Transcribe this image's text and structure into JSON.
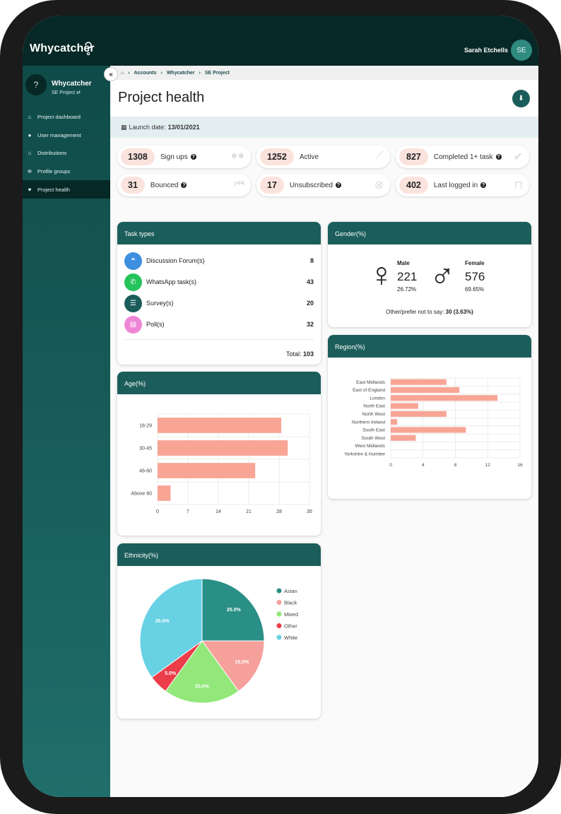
{
  "app": {
    "brand": "Whycatcher",
    "user_name": "Sarah Etchells",
    "user_initials": "SE"
  },
  "sidebar": {
    "project_name": "Whycatcher",
    "project_sub": "SE Project ⇄",
    "items": [
      {
        "label": "Project dashboard",
        "icon": "home-icon"
      },
      {
        "label": "User management",
        "icon": "users-icon"
      },
      {
        "label": "Distributions",
        "icon": "home-icon"
      },
      {
        "label": "Profile groups",
        "icon": "layers-icon"
      },
      {
        "label": "Project health",
        "icon": "heart-icon",
        "active": true
      }
    ]
  },
  "breadcrumb": [
    "Accounts",
    "Whycatcher",
    "SE Project"
  ],
  "page": {
    "title": "Project health",
    "launch_label": "Launch date:",
    "launch_date": "13/01/2021"
  },
  "stats": [
    {
      "value": "1308",
      "label": "Sign ups",
      "help": true,
      "icon": "users-icon"
    },
    {
      "value": "1252",
      "label": "Active",
      "help": false,
      "icon": "chart-line-icon"
    },
    {
      "value": "827",
      "label": "Completed 1+ task",
      "help": true,
      "icon": "check-circle-icon"
    },
    {
      "value": "31",
      "label": "Bounced",
      "help": true,
      "icon": "skip-back-icon"
    },
    {
      "value": "17",
      "label": "Unsubscribed",
      "help": true,
      "icon": "close-circle-icon"
    },
    {
      "value": "402",
      "label": "Last logged in",
      "help": true,
      "icon": "unlock-icon"
    }
  ],
  "tasks": {
    "title": "Task types",
    "items": [
      {
        "label": "Discussion Forum(s)",
        "value": "8",
        "color": "#3d8fe0",
        "icon": "chat-icon"
      },
      {
        "label": "WhatsApp task(s)",
        "value": "43",
        "color": "#25c35a",
        "icon": "whatsapp-icon"
      },
      {
        "label": "Survey(s)",
        "value": "20",
        "color": "#1b5d5a",
        "icon": "checklist-icon"
      },
      {
        "label": "Poll(s)",
        "value": "32",
        "color": "#ee86d6",
        "icon": "poll-icon"
      }
    ],
    "total_label": "Total:",
    "total_value": "103"
  },
  "gender": {
    "title": "Gender(%)",
    "male_label": "Male",
    "male_count": "221",
    "male_pct": "26.72%",
    "female_label": "Female",
    "female_count": "576",
    "female_pct": "69.65%",
    "other_label": "Other/prefer not to say:",
    "other_value": "30 (3.63%)"
  },
  "age": {
    "title": "Age(%)"
  },
  "region": {
    "title": "Region(%)"
  },
  "ethnicity": {
    "title": "Ethnicity(%)"
  },
  "chart_data": [
    {
      "type": "bar",
      "orientation": "horizontal",
      "title": "Age(%)",
      "categories": [
        "18-29",
        "30-45",
        "46-60",
        "Above 60"
      ],
      "values": [
        28.5,
        30,
        22.5,
        3
      ],
      "xlim": [
        0,
        35
      ],
      "xticks": [
        0,
        7,
        14,
        21,
        28,
        35
      ],
      "color": "#f8a596"
    },
    {
      "type": "bar",
      "orientation": "horizontal",
      "title": "Region(%)",
      "categories": [
        "East Midlands",
        "East of England",
        "London",
        "North East",
        "North West",
        "Northern Ireland",
        "South East",
        "South West",
        "West Midlands",
        "Yorkshire & Humber"
      ],
      "values": [
        6.9,
        8.5,
        13.2,
        3.4,
        6.9,
        0.8,
        9.3,
        3.1,
        0,
        0
      ],
      "xlim": [
        0,
        16
      ],
      "xticks": [
        0,
        4,
        8,
        12,
        16
      ],
      "color": "#f8a596"
    },
    {
      "type": "pie",
      "title": "Ethnicity(%)",
      "series": [
        {
          "name": "Asian",
          "value": 25.0,
          "color": "#2a8f86"
        },
        {
          "name": "Black",
          "value": 15.0,
          "color": "#f6a09c"
        },
        {
          "name": "Mixed",
          "value": 20.0,
          "color": "#92e87a"
        },
        {
          "name": "Other",
          "value": 5.0,
          "color": "#ec3d4a"
        },
        {
          "name": "White",
          "value": 35.0,
          "color": "#69d1e4"
        }
      ]
    }
  ]
}
